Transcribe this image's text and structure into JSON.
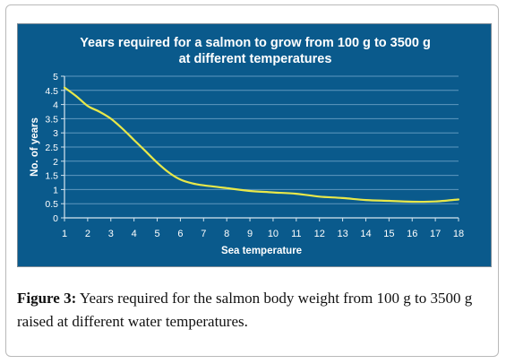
{
  "chart_data": {
    "type": "line",
    "title_line1": "Years required for a salmon to grow from 100 g to 3500 g",
    "title_line2": "at different temperatures",
    "xlabel": "Sea temperature",
    "ylabel": "No. of years",
    "xlim": [
      1,
      18
    ],
    "ylim": [
      0,
      5
    ],
    "x_ticks": [
      "1",
      "2",
      "3",
      "4",
      "5",
      "6",
      "7",
      "8",
      "9",
      "10",
      "11",
      "12",
      "13",
      "14",
      "15",
      "16",
      "17",
      "18"
    ],
    "y_ticks": [
      "0",
      "0.5",
      "1",
      "1.5",
      "2",
      "2.5",
      "3",
      "3.5",
      "4",
      "4.5",
      "5"
    ],
    "grid": true,
    "series": [
      {
        "color": "#e8e84a",
        "x": [
          1,
          1.5,
          2,
          2.5,
          3,
          3.5,
          4,
          4.5,
          5,
          5.5,
          6,
          6.5,
          7,
          8,
          9,
          10,
          11,
          12,
          13,
          14,
          15,
          16,
          17,
          18
        ],
        "y": [
          4.6,
          4.3,
          3.95,
          3.75,
          3.5,
          3.15,
          2.75,
          2.35,
          1.95,
          1.6,
          1.35,
          1.22,
          1.15,
          1.05,
          0.95,
          0.9,
          0.85,
          0.75,
          0.7,
          0.63,
          0.6,
          0.57,
          0.58,
          0.65
        ]
      }
    ]
  },
  "caption": {
    "label": "Figure 3:",
    "text": " Years required for the salmon body weight from 100 g to 3500 g raised at different water temperatures."
  }
}
